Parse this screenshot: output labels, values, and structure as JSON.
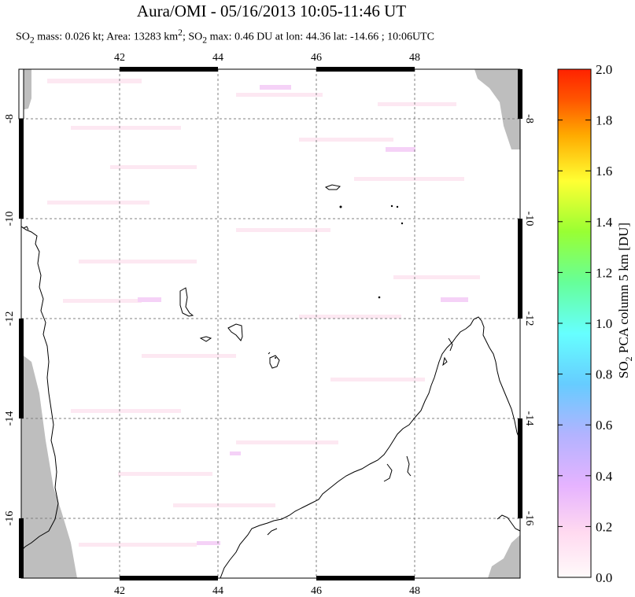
{
  "title": "Aura/OMI - 05/16/2013 10:05-11:46 UT",
  "subtitle": {
    "p1": "SO",
    "s1": "2",
    "p2": " mass: 0.026 kt; Area: 13283 km",
    "s2": "2",
    "p3": "; SO",
    "s3": "2",
    "p4": " max: 0.46 DU at lon: 44.36 lat: -14.66 ; 10:06UTC"
  },
  "map": {
    "lon_ticks": [
      "42",
      "44",
      "46",
      "48"
    ],
    "lat_ticks": [
      "-8",
      "-10",
      "-12",
      "-14",
      "-16"
    ],
    "land_color": "#000000",
    "nodata_color": "#bebebe",
    "grid_style": "dashed"
  },
  "colorbar": {
    "label_main": "SO",
    "label_sub": "2",
    "label_rest": " PCA column 5 km [DU]",
    "ticks": [
      "2.0",
      "1.8",
      "1.6",
      "1.4",
      "1.2",
      "1.0",
      "0.8",
      "0.6",
      "0.4",
      "0.2",
      "0.0"
    ],
    "colors": [
      "#fffafa",
      "#ffd9f0",
      "#e6b3ff",
      "#b3b3ff",
      "#66ccff",
      "#66ffff",
      "#66ff99",
      "#99ff33",
      "#ffff33",
      "#ffaa00",
      "#ff5500",
      "#ff2200"
    ]
  }
}
